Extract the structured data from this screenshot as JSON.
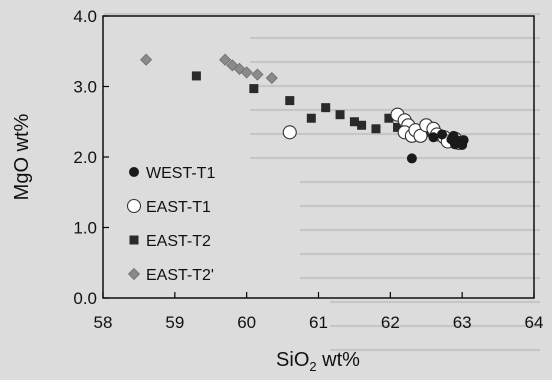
{
  "chart_data": {
    "type": "scatter",
    "title": "",
    "xlabel": "SiO",
    "xlabel_sub": "2",
    "xlabel_suffix": " wt%",
    "ylabel": "MgO wt%",
    "xlim": [
      58,
      64
    ],
    "ylim": [
      0,
      4
    ],
    "x_ticks": [
      58,
      59,
      60,
      61,
      62,
      63,
      64
    ],
    "y_ticks": [
      0,
      1,
      2,
      3,
      4
    ],
    "x_tick_labels": [
      "58",
      "59",
      "60",
      "61",
      "62",
      "63",
      "64"
    ],
    "y_tick_labels": [
      "0.0",
      "1.0",
      "2.0",
      "3.0",
      "4.0"
    ],
    "grid": false,
    "legend_position": "bottom-left",
    "colors": {
      "WEST-T1": "#1a1a1a",
      "EAST-T1_edge": "#333333",
      "EAST-T2": "#2a2a2a",
      "EAST-T2'": "#8a8a8a",
      "frame": "#000000"
    },
    "series": [
      {
        "name": "WEST-T1",
        "marker": "filled-circle",
        "points": [
          [
            62.72,
            2.32
          ],
          [
            62.85,
            2.25
          ],
          [
            62.9,
            2.18
          ],
          [
            62.95,
            2.22
          ],
          [
            63.0,
            2.17
          ],
          [
            63.02,
            2.24
          ],
          [
            62.88,
            2.3
          ],
          [
            62.3,
            1.98
          ],
          [
            62.6,
            2.28
          ]
        ]
      },
      {
        "name": "EAST-T1",
        "marker": "open-circle",
        "points": [
          [
            60.6,
            2.35
          ],
          [
            62.1,
            2.6
          ],
          [
            62.2,
            2.52
          ],
          [
            62.25,
            2.45
          ],
          [
            62.2,
            2.35
          ],
          [
            62.3,
            2.3
          ],
          [
            62.35,
            2.38
          ],
          [
            62.42,
            2.3
          ],
          [
            62.5,
            2.45
          ],
          [
            62.6,
            2.4
          ],
          [
            62.65,
            2.32
          ],
          [
            62.75,
            2.28
          ],
          [
            62.8,
            2.22
          ],
          [
            62.9,
            2.26
          ],
          [
            62.95,
            2.2
          ]
        ]
      },
      {
        "name": "EAST-T2",
        "marker": "filled-square",
        "points": [
          [
            59.3,
            3.15
          ],
          [
            60.1,
            2.97
          ],
          [
            60.6,
            2.8
          ],
          [
            60.9,
            2.55
          ],
          [
            61.1,
            2.7
          ],
          [
            61.3,
            2.6
          ],
          [
            61.5,
            2.5
          ],
          [
            61.6,
            2.45
          ],
          [
            61.8,
            2.4
          ],
          [
            61.98,
            2.55
          ],
          [
            62.1,
            2.42
          ],
          [
            62.5,
            2.35
          ],
          [
            62.7,
            2.3
          ],
          [
            62.85,
            2.25
          ],
          [
            62.95,
            2.2
          ]
        ]
      },
      {
        "name": "EAST-T2'",
        "marker": "diamond",
        "points": [
          [
            58.6,
            3.38
          ],
          [
            59.7,
            3.38
          ],
          [
            59.8,
            3.3
          ],
          [
            59.9,
            3.25
          ],
          [
            60.0,
            3.2
          ],
          [
            60.15,
            3.17
          ],
          [
            60.35,
            3.12
          ]
        ]
      }
    ]
  }
}
